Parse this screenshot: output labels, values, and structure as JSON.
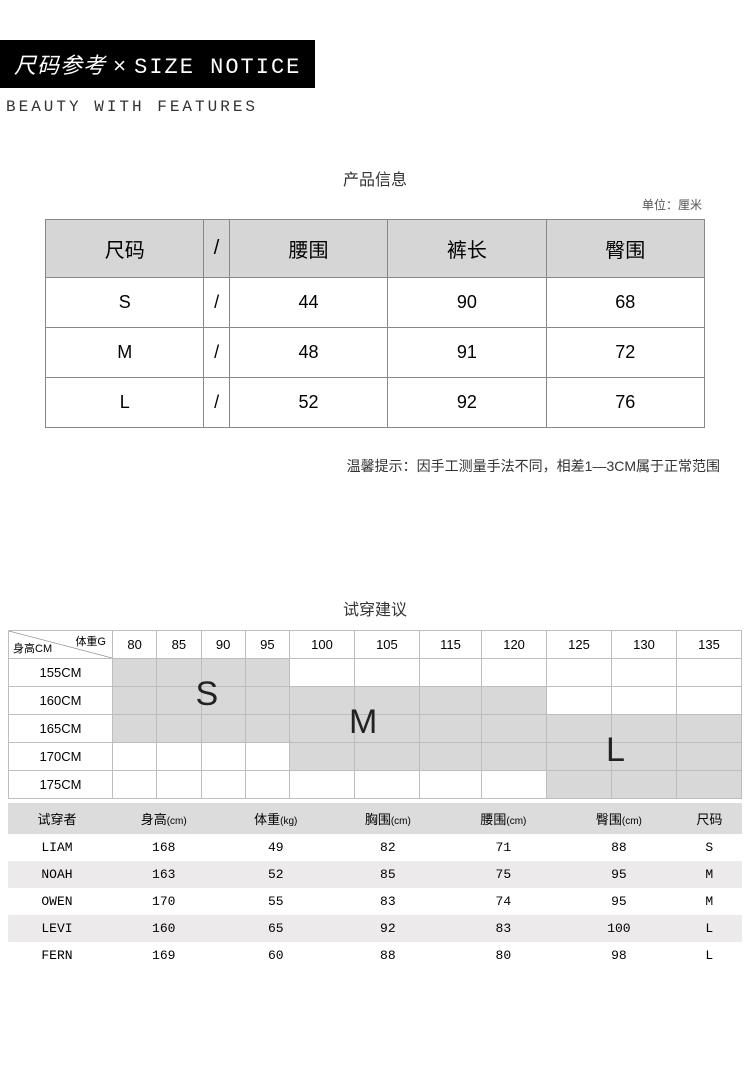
{
  "header": {
    "title_cn": "尺码参考",
    "title_sep": "×",
    "title_en": "SIZE NOTICE",
    "subtitle": "BEAUTY WITH FEATURES"
  },
  "product_info": {
    "title": "产品信息",
    "unit_note": "单位：厘米",
    "columns": [
      "尺码",
      "/",
      "腰围",
      "裤长",
      "臀围"
    ],
    "rows": [
      [
        "S",
        "/",
        "44",
        "90",
        "68"
      ],
      [
        "M",
        "/",
        "48",
        "91",
        "72"
      ],
      [
        "L",
        "/",
        "52",
        "92",
        "76"
      ]
    ],
    "tip": "温馨提示：因手工测量手法不同，相差1—3CM属于正常范围"
  },
  "fit": {
    "title": "试穿建议",
    "corner_top": "体重G",
    "corner_bottom": "身高CM",
    "weights": [
      "80",
      "85",
      "90",
      "95",
      "100",
      "105",
      "115",
      "120",
      "125",
      "130",
      "135"
    ],
    "heights": [
      "155CM",
      "160CM",
      "165CM",
      "170CM",
      "175CM"
    ],
    "zones": {
      "S": {
        "row_start": 0,
        "row_end": 2,
        "col_start": 0,
        "col_end": 3,
        "letter_pos": {
          "row": 1,
          "col": 2
        }
      },
      "M": {
        "row_start": 1,
        "row_end": 3,
        "col_start": 4,
        "col_end": 7,
        "letter_pos": {
          "row": 2,
          "col": 5
        }
      },
      "L": {
        "row_start": 2,
        "row_end": 4,
        "col_start": 8,
        "col_end": 10,
        "letter_pos": {
          "row": 3,
          "col": 9
        }
      }
    }
  },
  "wearers": {
    "columns": [
      {
        "label": "试穿者",
        "sub": ""
      },
      {
        "label": "身高",
        "sub": "(cm)"
      },
      {
        "label": "体重",
        "sub": "(kg)"
      },
      {
        "label": "胸围",
        "sub": "(cm)"
      },
      {
        "label": "腰围",
        "sub": "(cm)"
      },
      {
        "label": "臀围",
        "sub": "(cm)"
      },
      {
        "label": "尺码",
        "sub": ""
      }
    ],
    "rows": [
      [
        "LIAM",
        "168",
        "49",
        "82",
        "71",
        "88",
        "S"
      ],
      [
        "NOAH",
        "163",
        "52",
        "85",
        "75",
        "95",
        "M"
      ],
      [
        "OWEN",
        "170",
        "55",
        "83",
        "74",
        "95",
        "M"
      ],
      [
        "LEVI",
        "160",
        "65",
        "92",
        "83",
        "100",
        "L"
      ],
      [
        "FERN",
        "169",
        "60",
        "88",
        "80",
        "98",
        "L"
      ]
    ]
  },
  "colors": {
    "header_bg": "#000000",
    "header_fg": "#ffffff",
    "table_header_bg": "#d6d6d6",
    "zone_bg": "#d8d8d8",
    "border": "#bdbdbd"
  }
}
